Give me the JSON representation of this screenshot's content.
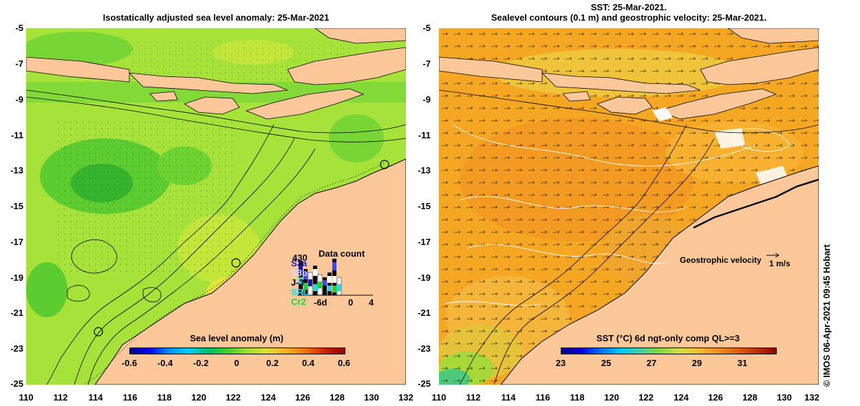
{
  "left_panel": {
    "title": "Isostatically adjusted sea level anomaly: 25-Mar-2021",
    "y_ticks": [
      "-5",
      "-7",
      "-9",
      "-11",
      "-13",
      "-15",
      "-17",
      "-19",
      "-21",
      "-23",
      "-25"
    ],
    "x_ticks": [
      "110",
      "112",
      "114",
      "116",
      "118",
      "120",
      "122",
      "124",
      "126",
      "128",
      "130",
      "132"
    ],
    "colorbar": {
      "title": "Sea level anomaly (m)",
      "labels": [
        "-0.6",
        "-0.4",
        "-0.2",
        "0",
        "0.2",
        "0.4",
        "0.6"
      ]
    },
    "data_count": {
      "title": "Data count",
      "legend": [
        "S3a",
        "S3b",
        "J-3",
        "SRL",
        "Cr2"
      ],
      "top_label": "430",
      "x_labels": [
        "-6d",
        "0",
        "4"
      ],
      "legend_colors": [
        "#1a1aa8",
        "#3f46ff",
        "#000000",
        "#26d6e6",
        "#26cf3a"
      ]
    }
  },
  "right_panel": {
    "title_line1": "SST: 25-Mar-2021.",
    "title_line2": "Sealevel contours (0.1 m) and geostrophic velocity: 25-Mar-2021.",
    "y_ticks": [
      "-5",
      "-7",
      "-9",
      "-11",
      "-13",
      "-15",
      "-17",
      "-19",
      "-21",
      "-23",
      "-25"
    ],
    "x_ticks": [
      "110",
      "112",
      "114",
      "116",
      "118",
      "120",
      "122",
      "124",
      "126",
      "128",
      "130",
      "132"
    ],
    "colorbar": {
      "title": "SST (°C) 6d ngt-only comp QL>=3",
      "labels": [
        "23",
        "25",
        "27",
        "29",
        "31"
      ]
    },
    "velocity_legend": {
      "label": "Geostrophic velocity",
      "scale": "1 m/s"
    }
  },
  "credit": "©  IMOS 06-Apr-2021 09:45 Hobart",
  "colors": {
    "land": "#fcc89a",
    "sla_ocean": "#a6e23a",
    "sst_ocean": "#f5a623"
  }
}
